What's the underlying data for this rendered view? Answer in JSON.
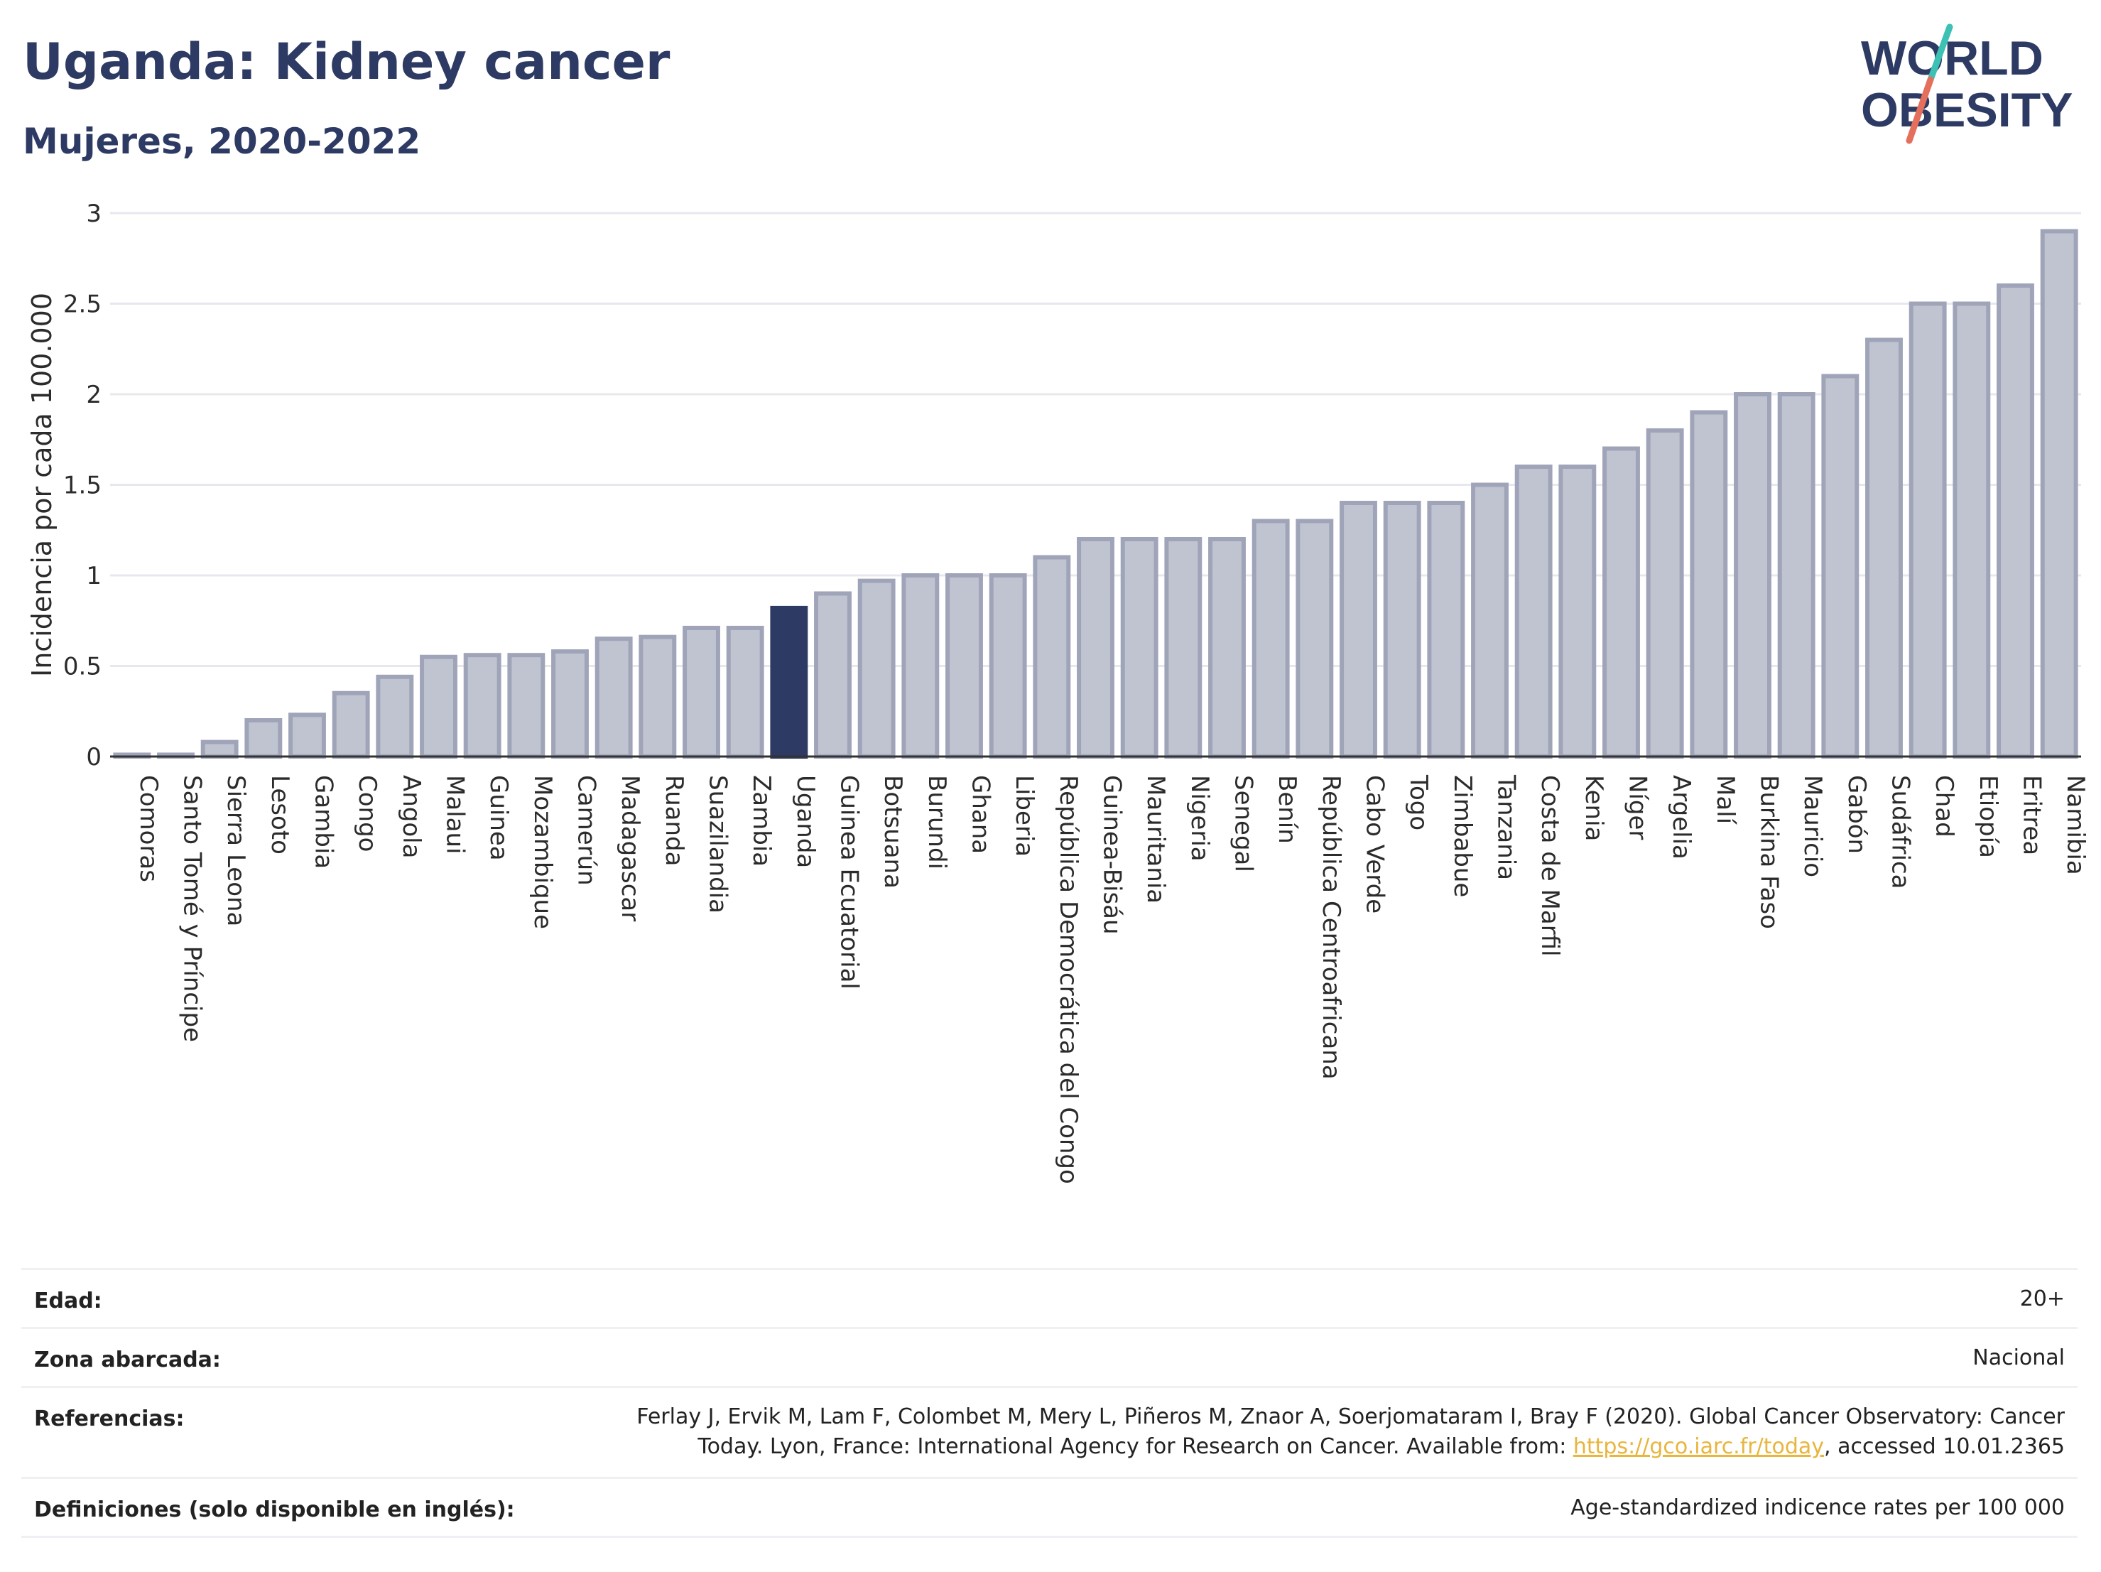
{
  "header": {
    "title": "Uganda: Kidney cancer",
    "subtitle": "Mujeres, 2020-2022"
  },
  "logo": {
    "line1": "WORLD",
    "line2": "OBESITY"
  },
  "colors": {
    "bar_fill": "#c0c4d1",
    "bar_stroke": "#9fa4b9",
    "highlight": "#2d3a63",
    "grid": "#e6e8ee",
    "logo_teal": "#3ec1b5",
    "logo_red": "#e46f5d",
    "link": "#e8b53d"
  },
  "chart_data": {
    "type": "bar",
    "ylabel": "Incidencia por cada 100.000",
    "ylim": [
      0,
      3
    ],
    "yticks": [
      0,
      0.5,
      1,
      1.5,
      2,
      2.5,
      3
    ],
    "ytick_labels": [
      "0",
      "0.5",
      "1",
      "1.5",
      "2",
      "2.5",
      "3"
    ],
    "grid": true,
    "highlight": "Uganda",
    "categories": [
      "Comoras",
      "Santo Tomé y Príncipe",
      "Sierra Leona",
      "Lesoto",
      "Gambia",
      "Congo",
      "Angola",
      "Malaui",
      "Guinea",
      "Mozambique",
      "Camerún",
      "Madagascar",
      "Ruanda",
      "Suazilandia",
      "Zambia",
      "Uganda",
      "Guinea Ecuatorial",
      "Botsuana",
      "Burundi",
      "Ghana",
      "Liberia",
      "República Democrática del Congo",
      "Guinea-Bisáu",
      "Mauritania",
      "Nigeria",
      "Senegal",
      "Benín",
      "República Centroafricana",
      "Cabo Verde",
      "Togo",
      "Zimbabue",
      "Tanzania",
      "Costa de Marfil",
      "Kenia",
      "Níger",
      "Argelia",
      "Malí",
      "Burkina Faso",
      "Mauricio",
      "Gabón",
      "Sudáfrica",
      "Chad",
      "Etiopía",
      "Eritrea",
      "Namibia"
    ],
    "values": [
      0.01,
      0.01,
      0.08,
      0.2,
      0.23,
      0.35,
      0.44,
      0.55,
      0.56,
      0.56,
      0.58,
      0.65,
      0.66,
      0.71,
      0.71,
      0.82,
      0.9,
      0.97,
      1.0,
      1.0,
      1.0,
      1.1,
      1.2,
      1.2,
      1.2,
      1.2,
      1.3,
      1.3,
      1.4,
      1.4,
      1.4,
      1.5,
      1.6,
      1.6,
      1.7,
      1.8,
      1.9,
      2.0,
      2.0,
      2.1,
      2.3,
      2.5,
      2.5,
      2.6,
      2.9
    ]
  },
  "footer": {
    "rows": [
      {
        "label": "Edad:",
        "value": "20+"
      },
      {
        "label": "Zona abarcada:",
        "value": "Nacional"
      },
      {
        "label": "Referencias:",
        "value_line1": "Ferlay J, Ervik M, Lam F, Colombet M, Mery L, Piñeros M, Znaor A, Soerjomataram I, Bray F (2020). Global Cancer Observatory: Cancer",
        "value_line2_pre": "Today. Lyon, France: International Agency for Research on Cancer. Available from: ",
        "link": "https://gco.iarc.fr/today",
        "value_line2_post": ", accessed 10.01.2365"
      },
      {
        "label": "Definiciones (solo disponible en inglés):",
        "value": "Age-standardized indicence rates per 100 000"
      }
    ]
  }
}
